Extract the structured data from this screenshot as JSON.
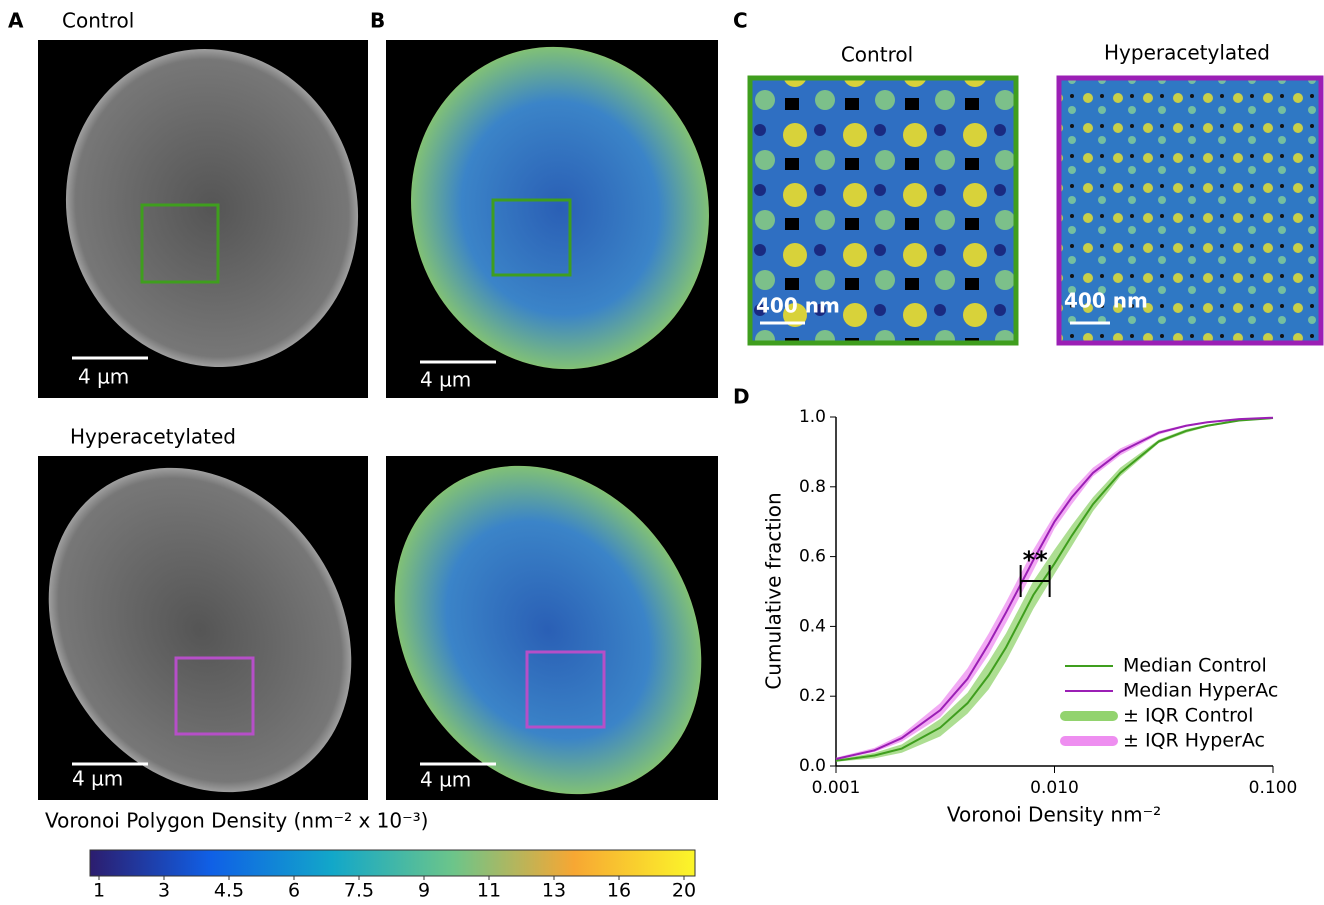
{
  "panel_labels": [
    "A",
    "B",
    "C",
    "D"
  ],
  "image_titles": {
    "control": "Control",
    "hyper": "Hyperacetylated"
  },
  "scale_bars": {
    "nucleus": "4 µm",
    "zoom": "400 nm"
  },
  "colorbar": {
    "title": "Voronoi Polygon Density (nm⁻² x 10⁻³)",
    "ticks": [
      1,
      3,
      4.5,
      6,
      7.5,
      9,
      11,
      13,
      16,
      20
    ]
  },
  "chart_data": {
    "type": "line",
    "x_label": "Voronoi Density nm⁻²",
    "y_label": "Cumulative fraction",
    "log_x": true,
    "xlim": [
      0.001,
      0.1
    ],
    "xticks": [
      0.001,
      {
        "value": 0.01,
        "label": "0.010"
      },
      {
        "value": 0.1,
        "label": "0.100"
      }
    ],
    "ylim": [
      0,
      1
    ],
    "yticks": [
      {
        "value": 0,
        "label": "0.0"
      },
      0.2,
      0.4,
      0.6,
      0.8,
      {
        "value": 1,
        "label": "1.0"
      }
    ],
    "x": [
      0.001,
      0.0015,
      0.002,
      0.003,
      0.004,
      0.005,
      0.006,
      0.007,
      0.008,
      0.01,
      0.012,
      0.015,
      0.02,
      0.03,
      0.04,
      0.05,
      0.07,
      0.1
    ],
    "series": [
      {
        "name": "Median Control",
        "color": "#3f9e1e",
        "values": [
          0.015,
          0.03,
          0.05,
          0.11,
          0.18,
          0.26,
          0.34,
          0.42,
          0.49,
          0.58,
          0.66,
          0.75,
          0.84,
          0.93,
          0.96,
          0.975,
          0.99,
          0.997
        ]
      },
      {
        "name": "Median HyperAc",
        "color": "#9b1fb5",
        "values": [
          0.02,
          0.045,
          0.08,
          0.16,
          0.25,
          0.35,
          0.44,
          0.52,
          0.59,
          0.7,
          0.77,
          0.84,
          0.9,
          0.955,
          0.975,
          0.985,
          0.994,
          0.998
        ]
      },
      {
        "name": "± IQR Control",
        "color": "#92d36e",
        "lower": [
          0.012,
          0.022,
          0.038,
          0.085,
          0.15,
          0.22,
          0.3,
          0.38,
          0.45,
          0.55,
          0.63,
          0.73,
          0.83,
          0.925,
          0.955,
          0.972,
          0.988,
          0.996
        ],
        "upper": [
          0.018,
          0.038,
          0.062,
          0.135,
          0.21,
          0.3,
          0.38,
          0.46,
          0.53,
          0.62,
          0.69,
          0.77,
          0.855,
          0.935,
          0.965,
          0.978,
          0.992,
          0.998
        ]
      },
      {
        "name": "± IQR HyperAc",
        "color": "#ee8ef0",
        "lower": [
          0.017,
          0.04,
          0.07,
          0.14,
          0.23,
          0.32,
          0.41,
          0.49,
          0.56,
          0.68,
          0.75,
          0.83,
          0.89,
          0.95,
          0.972,
          0.983,
          0.993,
          0.997
        ],
        "upper": [
          0.024,
          0.052,
          0.09,
          0.18,
          0.28,
          0.38,
          0.47,
          0.55,
          0.62,
          0.72,
          0.79,
          0.855,
          0.91,
          0.96,
          0.978,
          0.987,
          0.995,
          0.999
        ]
      }
    ],
    "annotation": {
      "text": "**",
      "x": [
        0.007,
        0.0095
      ],
      "y": 0.53
    },
    "legend": "lower right"
  }
}
